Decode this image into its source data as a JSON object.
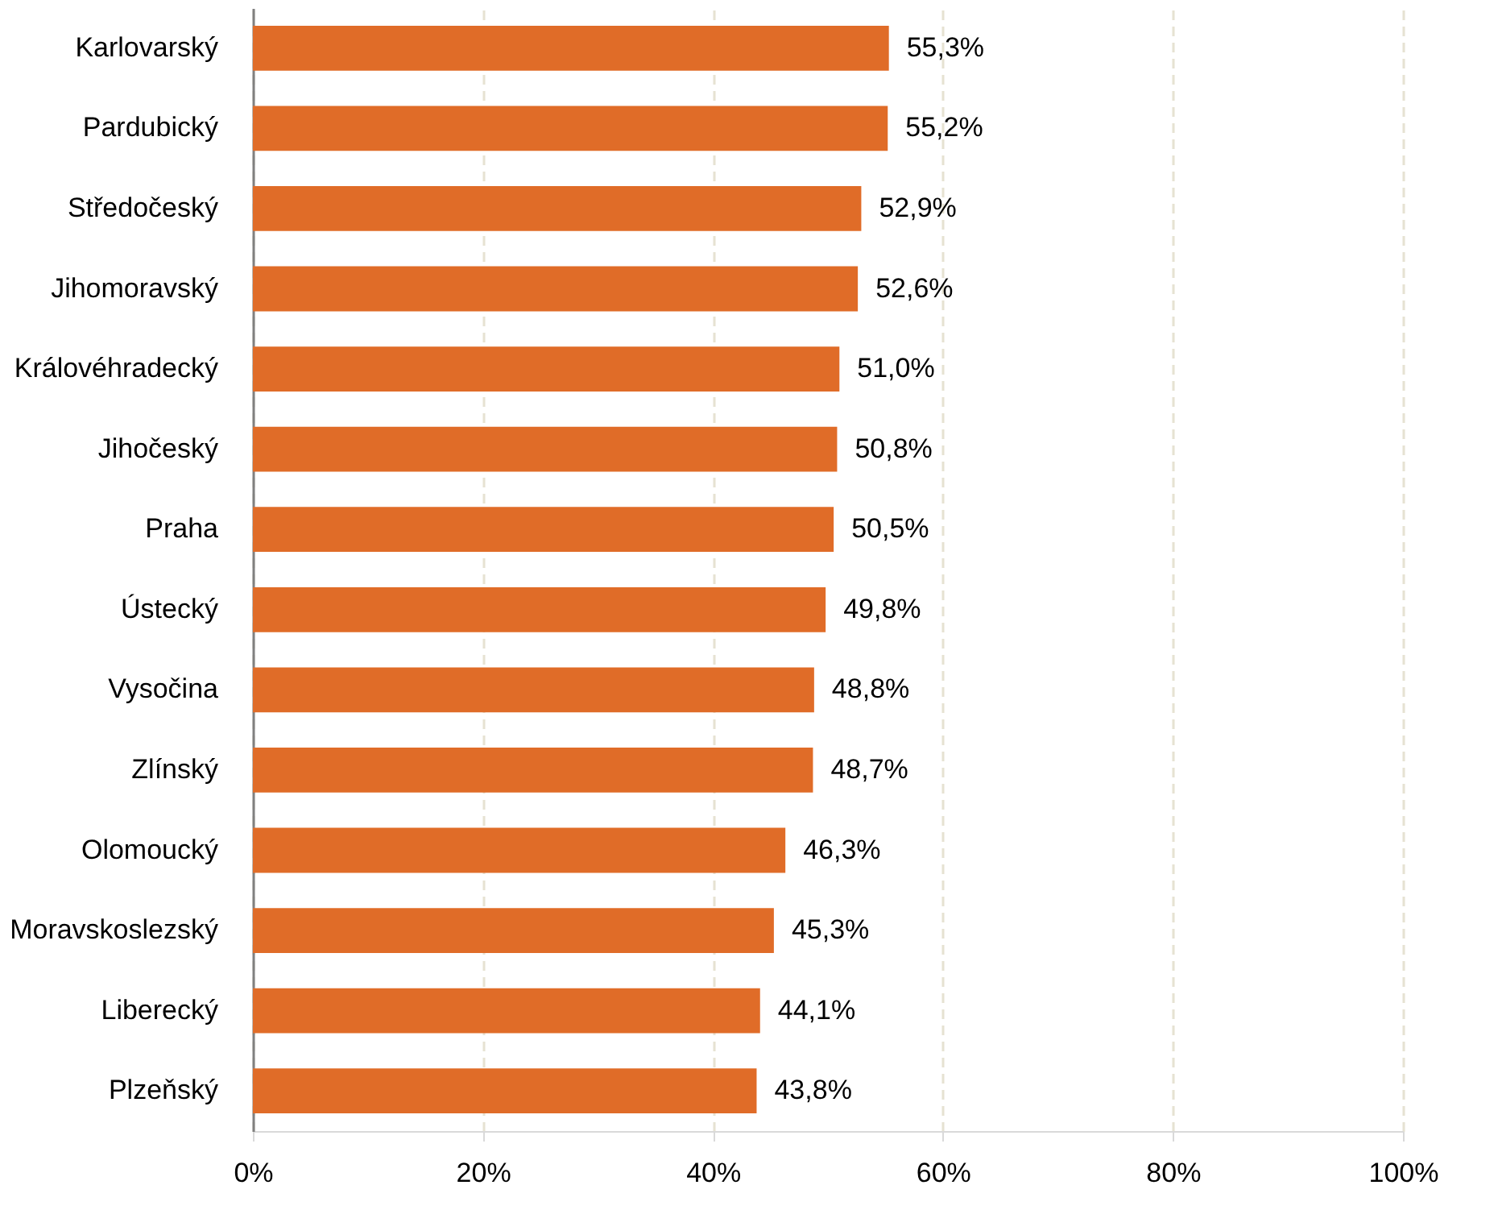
{
  "chart_data": {
    "type": "bar",
    "orientation": "horizontal",
    "categories": [
      "Karlovarský",
      "Pardubický",
      "Středočeský",
      "Jihomoravský",
      "Královéhradecký",
      "Jihočeský",
      "Praha",
      "Ústecký",
      "Vysočina",
      "Zlínský",
      "Olomoucký",
      "Moravskoslezský",
      "Liberecký",
      "Plzeňský"
    ],
    "values": [
      55.3,
      55.2,
      52.9,
      52.6,
      51.0,
      50.8,
      50.5,
      49.8,
      48.8,
      48.7,
      46.3,
      45.3,
      44.1,
      43.8
    ],
    "value_labels": [
      "55,3%",
      "55,2%",
      "52,9%",
      "52,6%",
      "51,0%",
      "50,8%",
      "50,5%",
      "49,8%",
      "48,8%",
      "48,7%",
      "46,3%",
      "45,3%",
      "44,1%",
      "43,8%"
    ],
    "color": "#e06c28",
    "xlim": [
      0,
      100
    ],
    "xticks": [
      {
        "value": 0,
        "label": "0%"
      },
      {
        "value": 20,
        "label": "20%"
      },
      {
        "value": 40,
        "label": "40%"
      },
      {
        "value": 60,
        "label": "60%"
      },
      {
        "value": 80,
        "label": "80%"
      },
      {
        "value": 100,
        "label": "100%"
      }
    ],
    "grid": "x"
  }
}
